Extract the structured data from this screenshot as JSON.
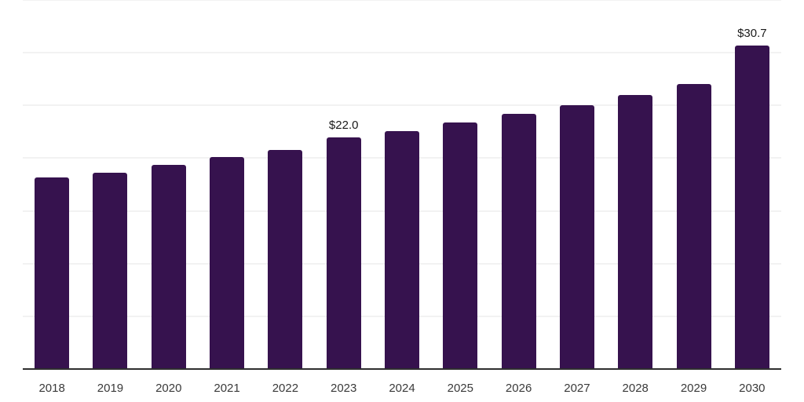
{
  "chart_data": {
    "type": "bar",
    "title": "",
    "xlabel": "",
    "ylabel": "",
    "categories": [
      "2018",
      "2019",
      "2020",
      "2021",
      "2022",
      "2023",
      "2024",
      "2025",
      "2026",
      "2027",
      "2028",
      "2029",
      "2030"
    ],
    "values": [
      18.2,
      18.6,
      19.4,
      20.1,
      20.8,
      22.0,
      22.6,
      23.4,
      24.2,
      25.0,
      26.0,
      27.0,
      30.7
    ],
    "data_labels": {
      "2023": "$22.0",
      "2030": "$30.7"
    },
    "ylim": [
      0,
      35
    ],
    "gridline_step": 5,
    "grid": true,
    "legend": "none",
    "colors": {
      "bar": "#36124E",
      "gridline": "#f2f2f2",
      "axis_line": "#2f2f2f",
      "data_label_text": "#1a1a1a",
      "tick_label_text": "#3a3a3a",
      "background": "#ffffff"
    }
  }
}
